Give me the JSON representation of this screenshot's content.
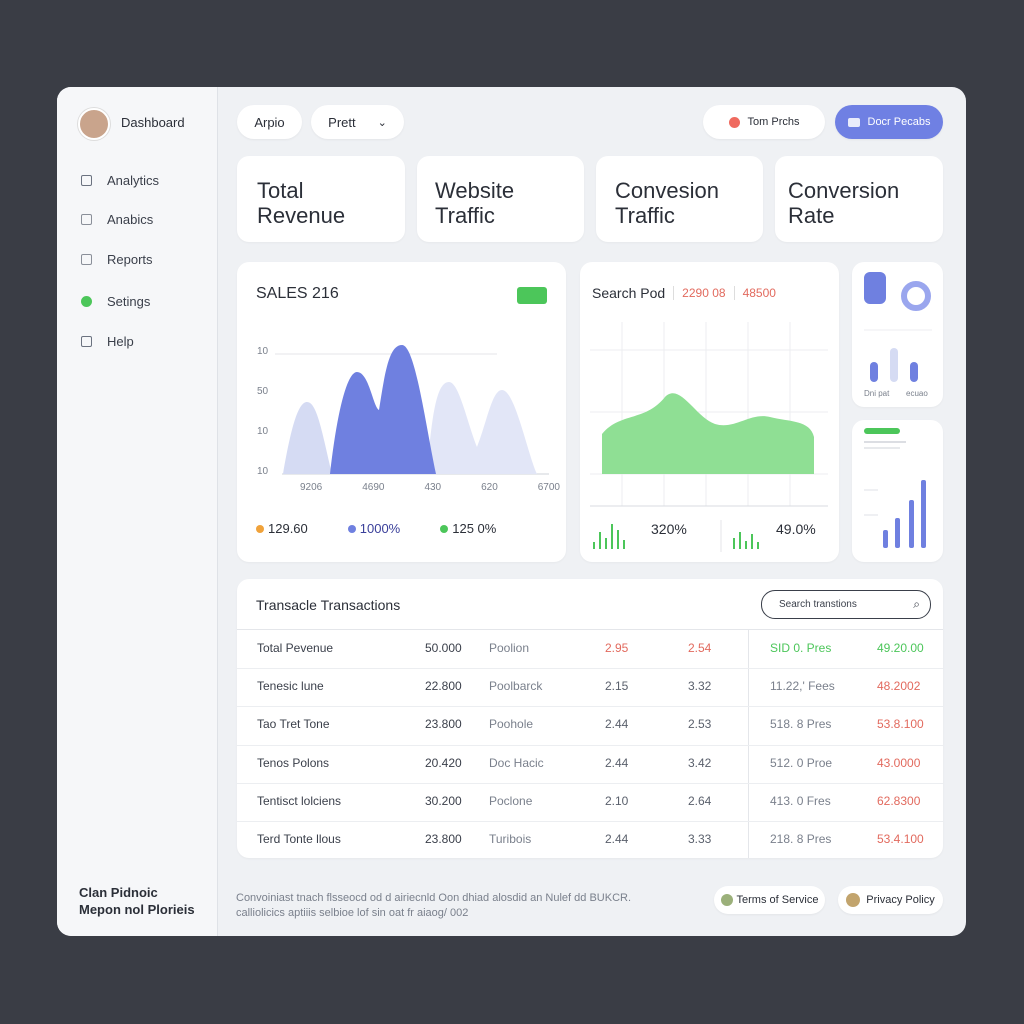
{
  "sidebar": {
    "brand": "Dashboard",
    "nav": [
      "Analytics",
      "Anabics",
      "Reports",
      "Setings",
      "Help"
    ],
    "footer": [
      "Clan Pidnoic",
      "Mepon nol Plorieis"
    ]
  },
  "topbar": {
    "tabs": [
      "Arpio",
      "Prett"
    ],
    "user": "Tom Prchs",
    "button": "Docr Pecabs"
  },
  "kpis": [
    "Total Revenue",
    "Website Traffic",
    "Convesion Traffic",
    "Conversion Rate"
  ],
  "sales": {
    "title": "SALES 216",
    "y_labels": [
      "10",
      "50",
      "10",
      "10"
    ],
    "x_labels": [
      "9206",
      "4690",
      "430",
      "620",
      "6700"
    ],
    "stats": [
      "129.60",
      "1000%",
      "125 0%"
    ]
  },
  "search": {
    "title": "Search Pod",
    "values": [
      "2290 08",
      "48500"
    ],
    "stats": [
      "320%",
      "49.0%"
    ]
  },
  "mini": {
    "labels": [
      "Dni pat",
      "ecuao"
    ]
  },
  "transactions": {
    "title": "Transacle Transactions",
    "search_placeholder": "Search transtions",
    "rows": [
      [
        "Total Pevenue",
        "50.000",
        "Poolion",
        "2.95",
        "2.54",
        "SID 0. Pres",
        "49.20.00"
      ],
      [
        "Tenesic lune",
        "22.800",
        "Poolbarck",
        "2.15",
        "3.32",
        "11.22,' Fees",
        "48.2002"
      ],
      [
        "Tao Tret Tone",
        "23.800",
        "Poohole",
        "2.44",
        "2.53",
        "518. 8 Pres",
        "53.8.100"
      ],
      [
        "Tenos Polons",
        "20.420",
        "Doc Hacic",
        "2.44",
        "3.42",
        "512. 0 Proe",
        "43.0000"
      ],
      [
        "Tentisct lolciens",
        "30.200",
        "Poclone",
        "2.10",
        "2.64",
        "413. 0 Fres",
        "62.8300"
      ],
      [
        "Terd Tonte llous",
        "23.800",
        "Turibois",
        "2.44",
        "3.33",
        "218. 8 Pres",
        "53.4.100"
      ]
    ]
  },
  "footer": {
    "text": [
      "Convoiniast tnach flsseocd od d airiecnld Oon dhiad alosdid an Nulef dd BUKCR.",
      "calliolicics aptiiis selbioe lof sin oat fr aiaog/ 002"
    ],
    "links": [
      "Terms of Service",
      "Privacy Policy"
    ]
  }
}
